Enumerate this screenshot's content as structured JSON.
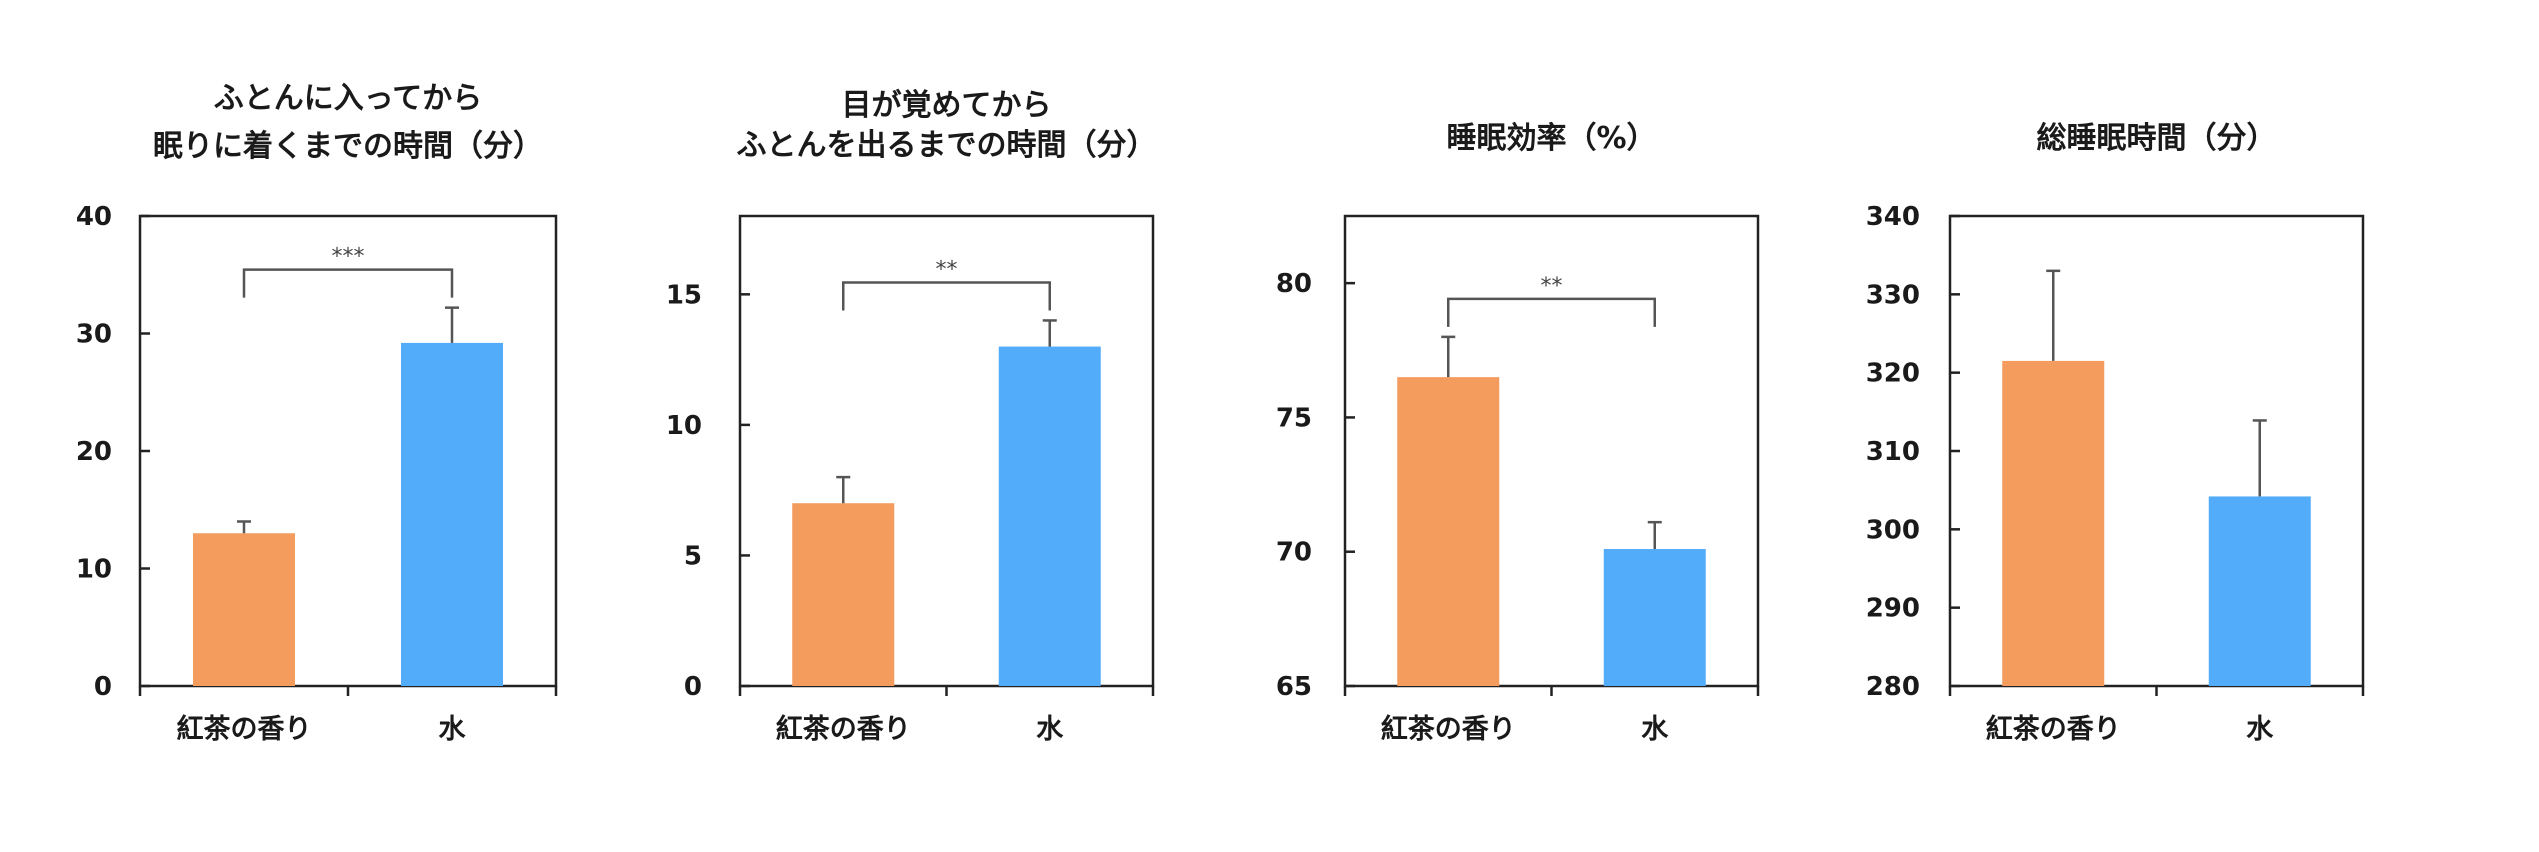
{
  "colors": {
    "tea": "#F49B5E",
    "water": "#53ACFA"
  },
  "chart_data": [
    {
      "type": "bar",
      "title": [
        "ふとんに入ってから",
        "眠りに着くまでの時間（分）"
      ],
      "categories": [
        "紅茶の香り",
        "水"
      ],
      "values": [
        13,
        29.2
      ],
      "error": [
        1,
        3
      ],
      "ylim": [
        0,
        40
      ],
      "yticks": [
        0,
        10,
        20,
        30,
        40
      ],
      "significance": "***"
    },
    {
      "type": "bar",
      "title": [
        "目が覚めてから",
        "ふとんを出るまでの時間（分）"
      ],
      "categories": [
        "紅茶の香り",
        "水"
      ],
      "values": [
        7,
        13
      ],
      "error": [
        1,
        1
      ],
      "ylim": [
        0,
        18
      ],
      "yticks": [
        0,
        5,
        10,
        15
      ],
      "significance": "**"
    },
    {
      "type": "bar",
      "title": [
        "睡眠効率（%）"
      ],
      "categories": [
        "紅茶の香り",
        "水"
      ],
      "values": [
        76.5,
        70.1
      ],
      "error": [
        1.5,
        1.0
      ],
      "ylim": [
        65,
        82.5
      ],
      "yticks": [
        65,
        70,
        75,
        80
      ],
      "significance": "**"
    },
    {
      "type": "bar",
      "title": [
        "総睡眠時間（分）"
      ],
      "categories": [
        "紅茶の香り",
        "水"
      ],
      "values": [
        321.5,
        304.2
      ],
      "error": [
        11.5,
        9.7
      ],
      "ylim": [
        280,
        340
      ],
      "yticks": [
        280,
        290,
        300,
        310,
        320,
        330,
        340
      ],
      "significance": ""
    }
  ]
}
